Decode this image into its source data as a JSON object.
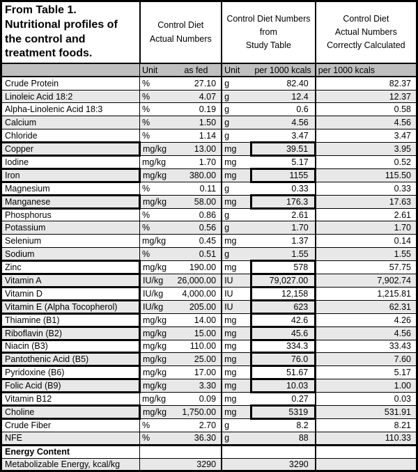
{
  "title_lines": [
    "From Table 1.",
    "Nutritional profiles of",
    "the control and",
    "treatment foods."
  ],
  "column_groups": [
    {
      "lines": [
        "Control Diet",
        "Actual Numbers"
      ]
    },
    {
      "lines": [
        "Control Diet Numbers",
        "from",
        "Study Table"
      ]
    },
    {
      "lines": [
        "Control Diet",
        "Actual Numbers",
        "Correctly Calculated"
      ]
    }
  ],
  "subheader": {
    "unit1": "Unit",
    "as_fed": "as fed",
    "unit2": "Unit",
    "study": "per 1000 kcals",
    "correct": "per 1000 kcals"
  },
  "rows": [
    {
      "label": "Crude Protein",
      "unit1": "%",
      "as_fed": "27.10",
      "unit2": "g",
      "study": "82.40",
      "correct": "82.37",
      "boxed": false
    },
    {
      "label": "Linoleic Acid 18:2",
      "unit1": "%",
      "as_fed": "4.07",
      "unit2": "g",
      "study": "12.4",
      "correct": "12.37",
      "boxed": false
    },
    {
      "label": "Alpha-Linolenic Acid 18:3",
      "unit1": "%",
      "as_fed": "0.19",
      "unit2": "g",
      "study": "0.6",
      "correct": "0.58",
      "boxed": false
    },
    {
      "label": "Calcium",
      "unit1": "%",
      "as_fed": "1.50",
      "unit2": "g",
      "study": "4.56",
      "correct": "4.56",
      "boxed": false
    },
    {
      "label": "Chloride",
      "unit1": "%",
      "as_fed": "1.14",
      "unit2": "g",
      "study": "3.47",
      "correct": "3.47",
      "boxed": false
    },
    {
      "label": "Copper",
      "unit1": "mg/kg",
      "as_fed": "13.00",
      "unit2": "mg",
      "study": "39.51",
      "correct": "3.95",
      "boxed": true
    },
    {
      "label": "Iodine",
      "unit1": "mg/kg",
      "as_fed": "1.70",
      "unit2": "mg",
      "study": "5.17",
      "correct": "0.52",
      "boxed": false
    },
    {
      "label": "Iron",
      "unit1": "mg/kg",
      "as_fed": "380.00",
      "unit2": "mg",
      "study": "1155",
      "correct": "115.50",
      "boxed": true
    },
    {
      "label": "Magnesium",
      "unit1": "%",
      "as_fed": "0.11",
      "unit2": "g",
      "study": "0.33",
      "correct": "0.33",
      "boxed": false
    },
    {
      "label": "Manganese",
      "unit1": "mg/kg",
      "as_fed": "58.00",
      "unit2": "mg",
      "study": "176.3",
      "correct": "17.63",
      "boxed": true
    },
    {
      "label": "Phosphorus",
      "unit1": "%",
      "as_fed": "0.86",
      "unit2": "g",
      "study": "2.61",
      "correct": "2.61",
      "boxed": false
    },
    {
      "label": "Potassium",
      "unit1": "%",
      "as_fed": "0.56",
      "unit2": "g",
      "study": "1.70",
      "correct": "1.70",
      "boxed": false
    },
    {
      "label": "Selenium",
      "unit1": "mg/kg",
      "as_fed": "0.45",
      "unit2": "mg",
      "study": "1.37",
      "correct": "0.14",
      "boxed": false
    },
    {
      "label": "Sodium",
      "unit1": "%",
      "as_fed": "0.51",
      "unit2": "g",
      "study": "1.55",
      "correct": "1.55",
      "boxed": false
    },
    {
      "label": "Zinc",
      "unit1": "mg/kg",
      "as_fed": "190.00",
      "unit2": "mg",
      "study": "578",
      "correct": "57.75",
      "boxed": true
    },
    {
      "label": "Vitamin A",
      "unit1": "IU/kg",
      "as_fed": "26,000.00",
      "unit2": "IU",
      "study": "79,027.00",
      "correct": "7,902.74",
      "boxed": true
    },
    {
      "label": "Vitamin D",
      "unit1": "IU/kg",
      "as_fed": "4,000.00",
      "unit2": "IU",
      "study": "12,158",
      "correct": "1,215.81",
      "boxed": true
    },
    {
      "label": "Vitamin E (Alpha Tocopherol)",
      "unit1": "IU/kg",
      "as_fed": "205.00",
      "unit2": "IU",
      "study": "623",
      "correct": "62.31",
      "boxed": true
    },
    {
      "label": "Thiamine (B1)",
      "unit1": "mg/kg",
      "as_fed": "14.00",
      "unit2": "mg",
      "study": "42.6",
      "correct": "4.26",
      "boxed": true
    },
    {
      "label": "Riboflavin (B2)",
      "unit1": "mg/kg",
      "as_fed": "15.00",
      "unit2": "mg",
      "study": "45.6",
      "correct": "4.56",
      "boxed": true
    },
    {
      "label": "Niacin (B3)",
      "unit1": "mg/kg",
      "as_fed": "110.00",
      "unit2": "mg",
      "study": "334.3",
      "correct": "33.43",
      "boxed": true
    },
    {
      "label": "Pantothenic Acid (B5)",
      "unit1": "mg/kg",
      "as_fed": "25.00",
      "unit2": "mg",
      "study": "76.0",
      "correct": "7.60",
      "boxed": true
    },
    {
      "label": "Pyridoxine (B6)",
      "unit1": "mg/kg",
      "as_fed": "17.00",
      "unit2": "mg",
      "study": "51.67",
      "correct": "5.17",
      "boxed": true
    },
    {
      "label": "Folic Acid (B9)",
      "unit1": "mg/kg",
      "as_fed": "3.30",
      "unit2": "mg",
      "study": "10.03",
      "correct": "1.00",
      "boxed": true
    },
    {
      "label": "Vitamin B12",
      "unit1": "mg/kg",
      "as_fed": "0.09",
      "unit2": "mg",
      "study": "0.27",
      "correct": "0.03",
      "boxed": false
    },
    {
      "label": "Choline",
      "unit1": "mg/kg",
      "as_fed": "1,750.00",
      "unit2": "mg",
      "study": "5319",
      "correct": "531.91",
      "boxed": true
    },
    {
      "label": "Crude Fiber",
      "unit1": "%",
      "as_fed": "2.70",
      "unit2": "g",
      "study": "8.2",
      "correct": "8.21",
      "boxed": false
    },
    {
      "label": "NFE",
      "unit1": "%",
      "as_fed": "36.30",
      "unit2": "g",
      "study": "88",
      "correct": "110.33",
      "boxed": false
    }
  ],
  "energy": {
    "section_label": "Energy Content",
    "row_label": "Metabolizable Energy, kcal/kg",
    "as_fed": "3290",
    "study": "3290",
    "correct": ""
  },
  "colors": {
    "border": "#000000",
    "row_alt_bg": "#e8e8e8",
    "subheader_bg": "#bfbfbf",
    "text": "#000000",
    "background": "#ffffff"
  }
}
